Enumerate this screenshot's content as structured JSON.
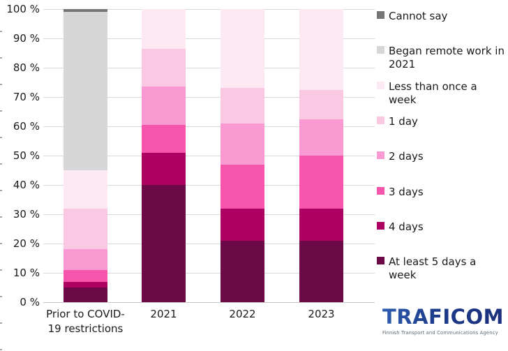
{
  "chart_data": {
    "type": "bar",
    "stacked": true,
    "unit": "%",
    "grid": true,
    "legend_position": "right",
    "ylim": [
      0,
      100
    ],
    "y_ticks": [
      "0 %",
      "10 %",
      "20 %",
      "30 %",
      "40 %",
      "50 %",
      "60 %",
      "70 %",
      "80 %",
      "90 %",
      "100 %"
    ],
    "categories": [
      "Prior to COVID-19 restrictions",
      "2021",
      "2022",
      "2023"
    ],
    "series": [
      {
        "name": "At least 5 days a week",
        "color": "#6b0a46",
        "values": [
          5,
          40,
          21,
          21
        ]
      },
      {
        "name": "4 days",
        "color": "#ad0261",
        "values": [
          2,
          11,
          11,
          11
        ]
      },
      {
        "name": "3 days",
        "color": "#f655ab",
        "values": [
          4,
          9.5,
          15,
          18
        ]
      },
      {
        "name": "2 days",
        "color": "#fb99d2",
        "values": [
          7,
          13,
          14,
          12.5
        ]
      },
      {
        "name": "1 day",
        "color": "#fac8e3",
        "values": [
          14,
          13,
          12,
          10
        ]
      },
      {
        "name": "Less than once a week",
        "color": "#fce9f4",
        "values": [
          13,
          13.5,
          27,
          27.5
        ]
      },
      {
        "name": "Began remote work in 2021",
        "color": "#d6d6d6",
        "values": [
          54,
          0,
          0,
          0
        ]
      },
      {
        "name": "Cannot say",
        "color": "#757575",
        "values": [
          1,
          0,
          0,
          0
        ]
      }
    ],
    "legend": [
      "Cannot say",
      "Began remote work in 2021",
      "Less than once a week",
      "1 day",
      "2 days",
      "3 days",
      "4 days",
      "At least 5 days a week"
    ]
  },
  "footer": {
    "logo_text": "TRAFICOM",
    "logo_tagline": "Finnish Transport and Communications Agency"
  }
}
